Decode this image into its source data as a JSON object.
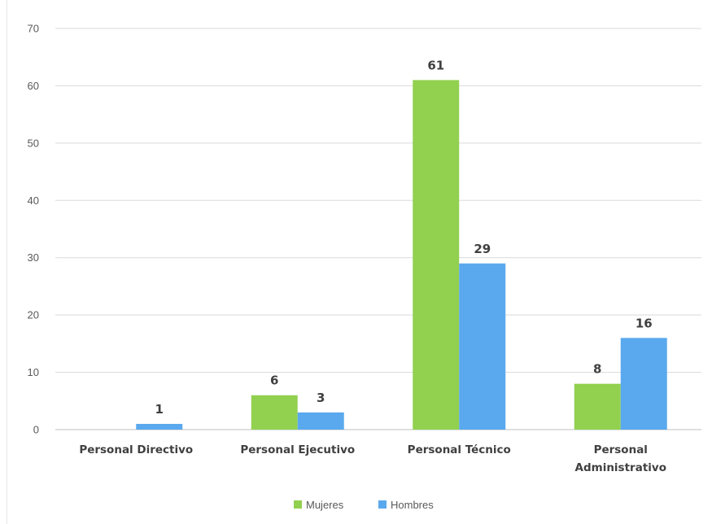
{
  "chart_data": {
    "type": "bar",
    "categories": [
      "Personal Directivo",
      "Personal Ejecutivo",
      "Personal Técnico",
      "Personal Administrativo"
    ],
    "category_lines": [
      [
        "Personal Directivo"
      ],
      [
        "Personal Ejecutivo"
      ],
      [
        "Personal Técnico"
      ],
      [
        "Personal",
        "Administrativo"
      ]
    ],
    "series": [
      {
        "name": "Mujeres",
        "color": "#92d050",
        "values": [
          0,
          6,
          61,
          8
        ]
      },
      {
        "name": "Hombres",
        "color": "#5aa9ee",
        "values": [
          1,
          3,
          29,
          16
        ]
      }
    ],
    "data_labels": [
      [
        "",
        "6",
        "61",
        "8"
      ],
      [
        "1",
        "3",
        "29",
        "16"
      ]
    ],
    "ylim": [
      0,
      70
    ],
    "yticks": [
      0,
      10,
      20,
      30,
      40,
      50,
      60,
      70
    ],
    "title": "",
    "xlabel": "",
    "ylabel": "",
    "grid": true,
    "legend_position": "bottom-center"
  }
}
